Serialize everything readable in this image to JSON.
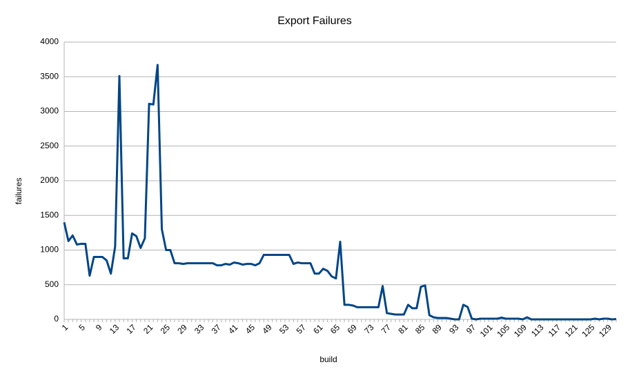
{
  "chart_data": {
    "type": "line",
    "title": "Export Failures",
    "x_label": "build",
    "y_label": "failures",
    "categories": [
      1,
      null,
      null,
      null,
      5,
      null,
      null,
      null,
      9,
      null,
      null,
      null,
      13,
      null,
      null,
      null,
      17,
      null,
      null,
      null,
      21,
      null,
      null,
      null,
      25,
      null,
      null,
      null,
      29,
      null,
      null,
      null,
      33,
      null,
      null,
      null,
      37,
      null,
      null,
      null,
      41,
      null,
      null,
      null,
      45,
      null,
      null,
      null,
      49,
      null,
      null,
      null,
      53,
      null,
      null,
      null,
      57,
      null,
      null,
      null,
      61,
      null,
      null,
      null,
      65,
      null,
      null,
      null,
      69,
      null,
      null,
      null,
      73,
      null,
      null,
      null,
      77,
      null,
      null,
      null,
      81,
      null,
      null,
      null,
      85,
      null,
      null,
      null,
      89,
      null,
      null,
      null,
      93,
      null,
      null,
      null,
      97,
      null,
      null,
      null,
      101,
      null,
      null,
      null,
      105,
      null,
      null,
      null,
      109,
      null,
      null,
      null,
      113,
      null,
      null,
      null,
      117,
      null,
      null,
      null,
      121,
      null,
      null,
      null,
      125,
      null,
      null,
      null,
      129,
      null,
      null
    ],
    "series": [
      {
        "name": "failures",
        "color": "#004586",
        "values": [
          1400,
          1130,
          1210,
          1080,
          1090,
          1090,
          630,
          900,
          900,
          900,
          850,
          660,
          1050,
          3510,
          880,
          880,
          1240,
          1200,
          1030,
          1170,
          3110,
          3100,
          3670,
          1300,
          1000,
          1000,
          810,
          810,
          800,
          810,
          810,
          810,
          810,
          810,
          810,
          810,
          780,
          780,
          800,
          790,
          820,
          810,
          790,
          800,
          800,
          780,
          810,
          930,
          930,
          930,
          930,
          930,
          930,
          930,
          800,
          820,
          810,
          810,
          810,
          660,
          660,
          730,
          700,
          620,
          590,
          1120,
          210,
          210,
          200,
          175,
          175,
          175,
          175,
          175,
          175,
          480,
          90,
          80,
          70,
          70,
          70,
          210,
          160,
          160,
          470,
          490,
          60,
          30,
          20,
          20,
          20,
          10,
          0,
          0,
          210,
          180,
          10,
          0,
          10,
          10,
          10,
          10,
          10,
          25,
          10,
          10,
          10,
          10,
          0,
          30,
          0,
          0,
          0,
          0,
          0,
          0,
          0,
          0,
          0,
          0,
          0,
          0,
          0,
          0,
          0,
          10,
          0,
          10,
          10,
          0,
          5
        ]
      }
    ],
    "ylim": [
      0,
      4000
    ],
    "yticks": [
      0,
      500,
      1000,
      1500,
      2000,
      2500,
      3000,
      3500,
      4000
    ],
    "grid": true
  }
}
